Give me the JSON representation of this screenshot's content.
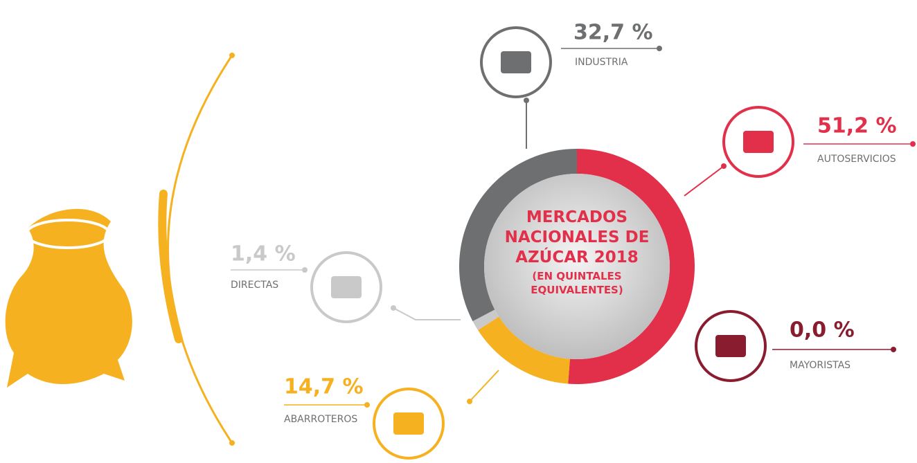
{
  "chart_data": {
    "type": "donut",
    "title": "MERCADOS NACIONALES DE AZÚCAR 2018",
    "subtitle": "(EN QUINTALES EQUIVALENTES)",
    "categories": [
      "AUTOSERVICIOS",
      "MAYORISTAS",
      "ABARROTEROS",
      "DIRECTAS",
      "INDUSTRIA"
    ],
    "values": [
      51.2,
      0.0,
      14.7,
      1.4,
      32.7
    ],
    "value_labels": [
      "51,2 %",
      "0,0 %",
      "14,7 %",
      "1,4 %",
      "32,7 %"
    ],
    "colors": [
      "#e2304b",
      "#8a1c30",
      "#f5b120",
      "#c9c9c9",
      "#6e6f71"
    ]
  }
}
